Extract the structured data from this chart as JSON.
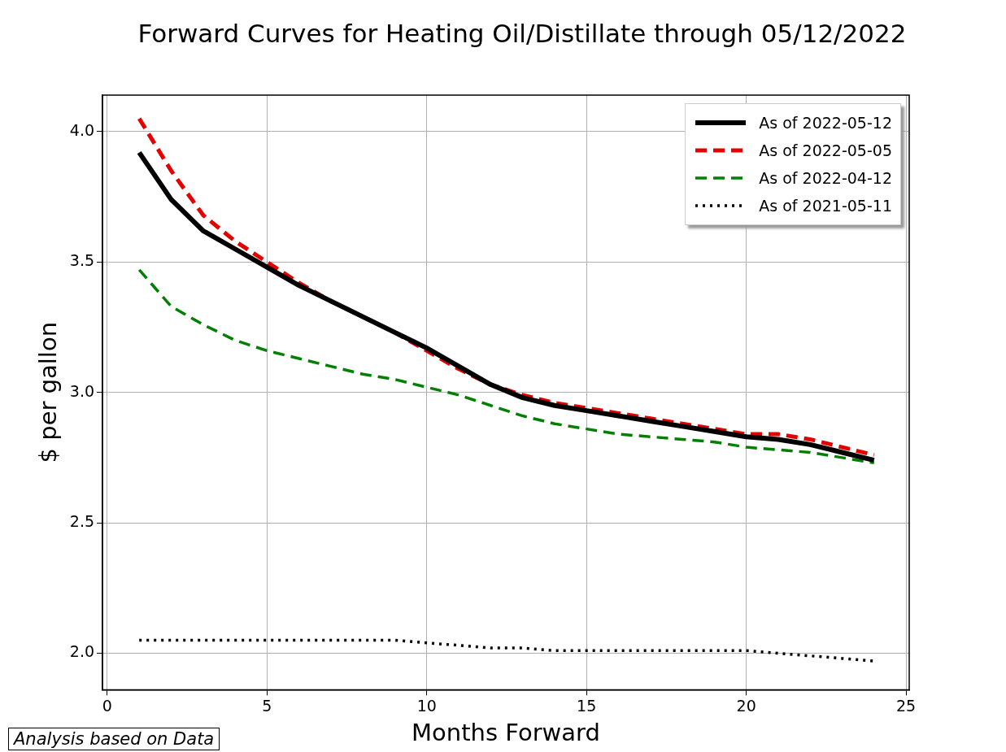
{
  "chart_data": {
    "type": "line",
    "title": "Forward Curves for Heating Oil/Distillate through 05/12/2022",
    "xlabel": "Months Forward",
    "ylabel": "$ per gallon",
    "x": [
      1,
      2,
      3,
      4,
      5,
      6,
      7,
      8,
      9,
      10,
      11,
      12,
      13,
      14,
      15,
      16,
      17,
      18,
      19,
      20,
      21,
      22,
      23,
      24
    ],
    "series": [
      {
        "name": "As of 2022-05-12",
        "color": "#000000",
        "line_style": "solid",
        "values": [
          3.92,
          3.74,
          3.62,
          3.55,
          3.48,
          3.41,
          3.35,
          3.29,
          3.23,
          3.17,
          3.1,
          3.03,
          2.98,
          2.95,
          2.93,
          2.91,
          2.89,
          2.87,
          2.85,
          2.83,
          2.82,
          2.8,
          2.77,
          2.74
        ]
      },
      {
        "name": "As of 2022-05-05",
        "color": "#e50000",
        "line_style": "dashed",
        "values": [
          4.05,
          3.85,
          3.68,
          3.58,
          3.5,
          3.42,
          3.35,
          3.29,
          3.23,
          3.16,
          3.09,
          3.03,
          2.99,
          2.96,
          2.94,
          2.92,
          2.9,
          2.88,
          2.86,
          2.84,
          2.84,
          2.82,
          2.79,
          2.76
        ]
      },
      {
        "name": "As of 2022-04-12",
        "color": "#008000",
        "line_style": "dashed",
        "values": [
          3.47,
          3.33,
          3.26,
          3.2,
          3.16,
          3.13,
          3.1,
          3.07,
          3.05,
          3.02,
          2.99,
          2.95,
          2.91,
          2.88,
          2.86,
          2.84,
          2.83,
          2.82,
          2.81,
          2.79,
          2.78,
          2.77,
          2.75,
          2.73
        ]
      },
      {
        "name": "As of 2021-05-11",
        "color": "#000000",
        "line_style": "dotted",
        "values": [
          2.05,
          2.05,
          2.05,
          2.05,
          2.05,
          2.05,
          2.05,
          2.05,
          2.05,
          2.04,
          2.03,
          2.02,
          2.02,
          2.01,
          2.01,
          2.01,
          2.01,
          2.01,
          2.01,
          2.01,
          2.0,
          1.99,
          1.98,
          1.97
        ]
      }
    ],
    "xlim": [
      -0.15,
      25.1
    ],
    "xticks": [
      0,
      5,
      10,
      15,
      20,
      25
    ],
    "ylim": [
      1.86,
      4.14
    ],
    "yticks": [
      {
        "value": 2,
        "label": "2.0"
      },
      {
        "value": 2.5,
        "label": "2.5"
      },
      {
        "value": 3,
        "label": "3.0"
      },
      {
        "value": 3.5,
        "label": "3.5"
      },
      {
        "value": 4,
        "label": "4.0"
      }
    ],
    "grid": true,
    "legend": "top right",
    "marker": "none",
    "annotations": [
      "Analysis based on Data"
    ]
  }
}
